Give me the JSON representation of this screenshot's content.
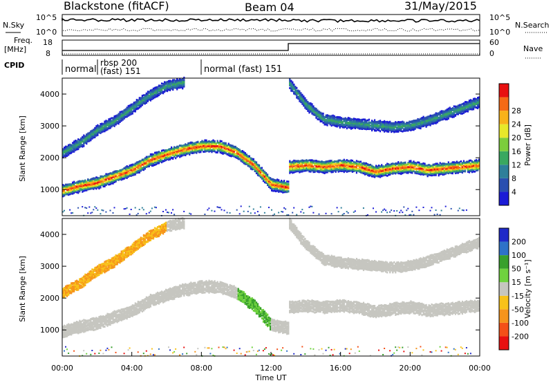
{
  "header": {
    "station": "Blackstone (fitACF)",
    "beam": "Beam 04",
    "date": "31/May/2015"
  },
  "panels": {
    "nsky_label": "N.Sky",
    "nsearch_label": "N.Search",
    "freq_label_1": "Freq.",
    "freq_label_2": "[MHz]",
    "nave_label": "Nave",
    "cpid_label": "CPID",
    "nsky_ticks": [
      "10^5",
      "10^0"
    ],
    "nsearch_ticks": [
      "10^5",
      "10^0"
    ],
    "freq_ticks": [
      "18",
      "8"
    ],
    "nave_ticks": [
      "60",
      "0"
    ],
    "cpid_segments": [
      {
        "text": "normal",
        "start_hour": 0
      },
      {
        "text": "rbsp 200",
        "start_hour": 2
      },
      {
        "text": "(fast) 151",
        "start_hour": 2
      },
      {
        "text": "normal (fast)  151",
        "start_hour": 8
      }
    ]
  },
  "chart_data": [
    {
      "type": "heatmap",
      "panel": "power",
      "ylabel": "Slant Range [km]",
      "ylim": [
        180,
        4500
      ],
      "yticks": [
        "1000",
        "2000",
        "3000",
        "4000"
      ],
      "colorbar_label": "Power [dB]",
      "colorbar_ticks": [
        "4",
        "8",
        "12",
        "16",
        "20",
        "24",
        "28"
      ],
      "colors": [
        "#1b1bd6",
        "#2a4fb0",
        "#2e7f9a",
        "#3aa860",
        "#7ccd3c",
        "#e7e82a",
        "#f8b21a",
        "#f56a16",
        "#e81010"
      ],
      "bands": [
        {
          "name": "main",
          "points": [
            [
              0,
              1000
            ],
            [
              1,
              1150
            ],
            [
              2,
              1250
            ],
            [
              3,
              1450
            ],
            [
              4,
              1650
            ],
            [
              5,
              1950
            ],
            [
              6,
              2150
            ],
            [
              7,
              2300
            ],
            [
              8,
              2400
            ],
            [
              9,
              2400
            ],
            [
              10,
              2200
            ],
            [
              11,
              1800
            ],
            [
              12,
              1200
            ],
            [
              13,
              1100
            ],
            [
              13,
              1750
            ],
            [
              14,
              1800
            ],
            [
              15,
              1750
            ],
            [
              16,
              1800
            ],
            [
              17,
              1750
            ],
            [
              18,
              1600
            ],
            [
              19,
              1700
            ],
            [
              20,
              1750
            ],
            [
              21,
              1650
            ],
            [
              22,
              1700
            ],
            [
              23,
              1750
            ],
            [
              24,
              1800
            ]
          ]
        },
        {
          "name": "upper",
          "points": [
            [
              0,
              2200
            ],
            [
              1,
              2500
            ],
            [
              2,
              2900
            ],
            [
              3,
              3200
            ],
            [
              4,
              3600
            ],
            [
              5,
              4000
            ],
            [
              6,
              4300
            ],
            [
              7,
              4400
            ]
          ]
        },
        {
          "name": "far",
          "points": [
            [
              13,
              4400
            ],
            [
              14,
              3700
            ],
            [
              15,
              3250
            ],
            [
              16,
              3150
            ],
            [
              17,
              3100
            ],
            [
              18,
              3050
            ],
            [
              19,
              3000
            ],
            [
              20,
              3050
            ],
            [
              21,
              3200
            ],
            [
              22,
              3400
            ],
            [
              23,
              3600
            ],
            [
              24,
              3800
            ]
          ]
        }
      ]
    },
    {
      "type": "heatmap",
      "panel": "velocity",
      "xlabel": "Time UT",
      "ylabel": "Slant Range [km]",
      "ylim": [
        180,
        4500
      ],
      "yticks": [
        "1000",
        "2000",
        "3000",
        "4000"
      ],
      "xticks": [
        "00:00",
        "04:00",
        "08:00",
        "12:00",
        "16:00",
        "20:00",
        "00:00"
      ],
      "colorbar_label": "Velocity [m s⁻¹]",
      "colorbar_ticks": [
        "200",
        "100",
        "50",
        "15",
        "-15",
        "-50",
        "-100",
        "-200"
      ],
      "colors": [
        "#1f2ac8",
        "#2e72c8",
        "#38a02c",
        "#6fd23e",
        "#c6c6c0",
        "#f8c21a",
        "#f6941c",
        "#f45018",
        "#e81010"
      ],
      "values_kms": [
        200,
        100,
        50,
        15,
        -15,
        -50,
        -100,
        -200
      ]
    }
  ]
}
